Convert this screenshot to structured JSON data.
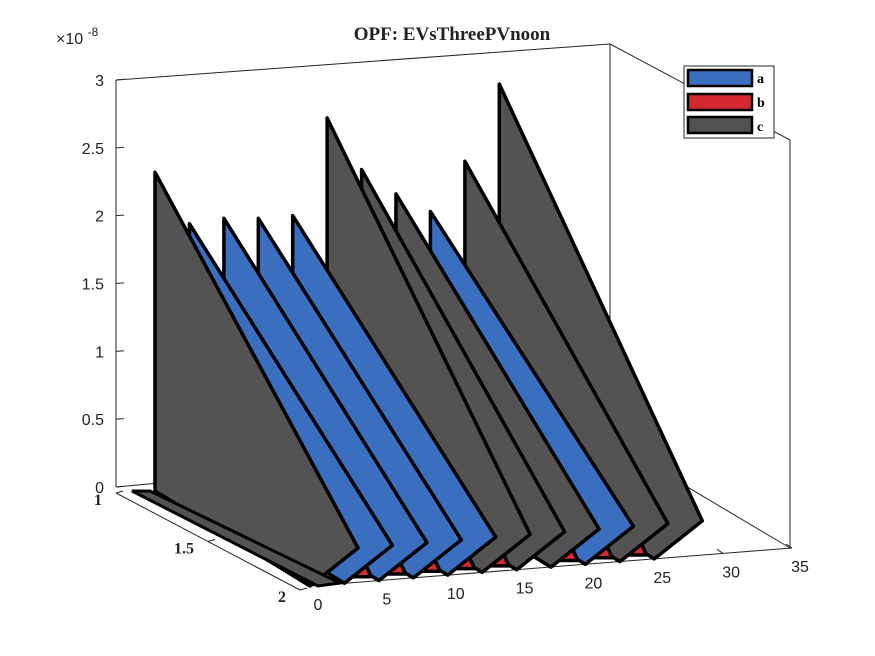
{
  "chart_data": {
    "type": "area",
    "title": "OPF: EVsThreePVnoon",
    "exponent_label": "×10",
    "exponent_power": "-8",
    "z_ticks": [
      "0",
      "0.5",
      "1",
      "1.5",
      "2",
      "2.5",
      "3"
    ],
    "x_ticks": [
      "0",
      "5",
      "10",
      "15",
      "20",
      "25",
      "30",
      "35"
    ],
    "y_ticks": [
      "1",
      "1.5",
      "2"
    ],
    "xlim": [
      0,
      35
    ],
    "ylim": [
      1,
      2
    ],
    "zlim": [
      0,
      3e-08
    ],
    "legend_placement": "top-right",
    "grid": false,
    "series": [
      {
        "name": "a",
        "color": "#3a6ebf",
        "peaks": [
          {
            "x": 2.5,
            "z": 1.95e-08
          },
          {
            "x": 5,
            "z": 1.97e-08
          },
          {
            "x": 7.5,
            "z": 1.95e-08
          },
          {
            "x": 10,
            "z": 1.95e-08
          },
          {
            "x": 17.5,
            "z": 1.95e-08
          },
          {
            "x": 20,
            "z": 1.9e-08
          }
        ]
      },
      {
        "name": "b",
        "color": "#d42a2f",
        "peaks": [
          {
            "x": 3,
            "z": 1.2e-09
          },
          {
            "x": 5.5,
            "z": 1.2e-09
          },
          {
            "x": 8,
            "z": 1.2e-09
          },
          {
            "x": 10.5,
            "z": 1.2e-09
          },
          {
            "x": 13,
            "z": 1.2e-09
          },
          {
            "x": 18,
            "z": 1.2e-09
          },
          {
            "x": 20.5,
            "z": 1.2e-09
          },
          {
            "x": 23,
            "z": 1.2e-09
          }
        ]
      },
      {
        "name": "c",
        "color": "#545253",
        "peaks": [
          {
            "x": 0,
            "z": 2.35e-08
          },
          {
            "x": 12.5,
            "z": 2.65e-08
          },
          {
            "x": 15,
            "z": 2.25e-08
          },
          {
            "x": 17.5,
            "z": 2.05e-08
          },
          {
            "x": 22.5,
            "z": 2.25e-08
          },
          {
            "x": 25,
            "z": 2.8e-08
          }
        ]
      }
    ]
  }
}
